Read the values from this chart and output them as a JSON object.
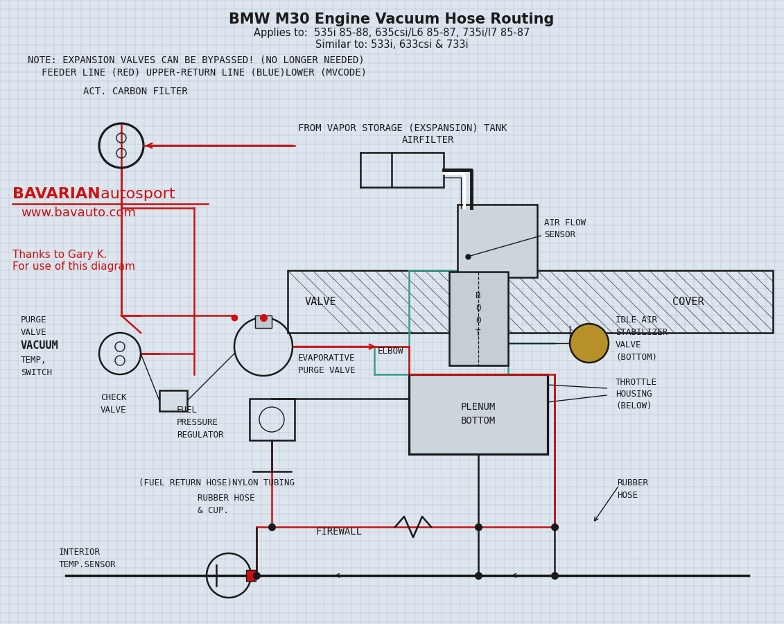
{
  "title_line1": "BMW M30 Engine Vacuum Hose Routing",
  "title_line2": "Applies to:  535i 85-88, 635csi/L6 85-87, 735i/l7 85-87",
  "title_line3": "Similar to: 533i, 633csi & 733i",
  "note_line1": "NOTE: EXPANSION VALVES CAN BE BYPASSED! (NO LONGER NEEDED)",
  "note_line2": "FEEDER LINE (RED) UPPER-RETURN LINE (BLUE)LOWER (MVCODE)",
  "brand_bavarian": "BAVARIAN",
  "brand_autosport": " autosport",
  "brand_url": "www.bavauto.com",
  "thanks": "Thanks to Gary K.\nFor use of this diagram",
  "bg_color": "#dde5ee",
  "grid_color": "#b0bece",
  "red_color": "#cc1111",
  "teal_color": "#3a9a8a",
  "black_color": "#111111",
  "dark_color": "#1a1a1a",
  "white_color": "#ffffff"
}
